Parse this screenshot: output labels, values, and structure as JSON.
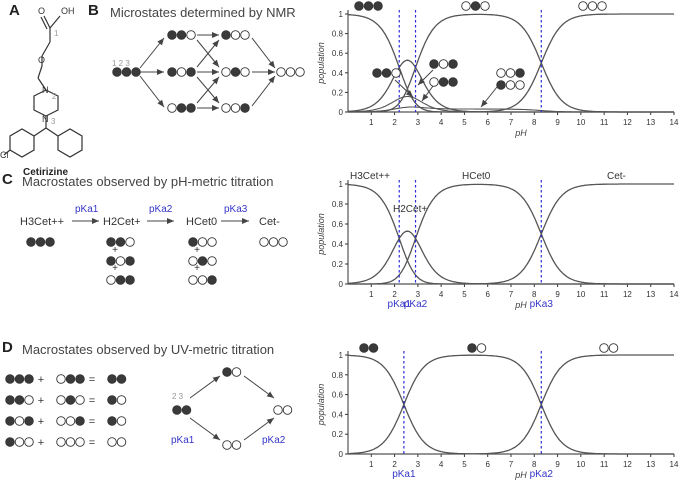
{
  "panels": {
    "A": {
      "label": "A",
      "molecule": "Cetirizine",
      "atoms": {
        "carboxyl": "OH",
        "carbonyl_O": "O",
        "ether_O": "O",
        "chlorine": "Cl",
        "n2": "N",
        "n3": "N",
        "site1": "1",
        "site2": "2",
        "site3": "3"
      }
    },
    "B": {
      "label": "B",
      "title": "Microstates determined by NMR",
      "site_numbers": "1 2 3"
    },
    "C": {
      "label": "C",
      "title": "Macrostates observed by pH-metric titration"
    },
    "D": {
      "label": "D",
      "title": "Macrostates observed by UV-metric titration",
      "site_numbers": "2 3"
    }
  },
  "states": {
    "H3Cet": "H3Cet++",
    "H2Cet": "H2Cet+",
    "HCet": "HCet0",
    "Cet": "Cet-"
  },
  "pka": {
    "k1": "pKa1",
    "k2": "pKa2",
    "k3": "pKa3"
  },
  "equations": [
    "+",
    "="
  ],
  "colors": {
    "curve": "#555555",
    "pka_line": "#2b2bd6",
    "pka_text": "#3535c8",
    "filled_dot": "#3a3a3a"
  },
  "chart_data": [
    {
      "type": "line",
      "panel": "B",
      "xlabel": "pH",
      "ylabel": "population",
      "xlim": [
        0,
        14
      ],
      "ylim": [
        0,
        1
      ],
      "xticks": [
        1,
        2,
        3,
        4,
        5,
        6,
        7,
        8,
        9,
        10,
        11,
        12,
        13,
        14
      ],
      "yticks": [
        0,
        0.2,
        0.4,
        0.6,
        0.8,
        1
      ],
      "pka_values": [
        2.2,
        2.9,
        8.3
      ],
      "state_labels": [
        "111",
        "010",
        "000",
        "110",
        "101",
        "011",
        "001",
        "100"
      ]
    },
    {
      "type": "line",
      "panel": "C",
      "xlabel": "pH",
      "ylabel": "population",
      "xlim": [
        0,
        14
      ],
      "ylim": [
        0,
        1
      ],
      "xticks": [
        1,
        2,
        3,
        4,
        5,
        6,
        7,
        8,
        9,
        10,
        11,
        12,
        13,
        14
      ],
      "yticks": [
        0,
        0.2,
        0.4,
        0.6,
        0.8,
        1
      ],
      "pka_values": [
        2.2,
        2.9,
        8.3
      ],
      "series": [
        {
          "name": "H3Cet++"
        },
        {
          "name": "H2Cet+"
        },
        {
          "name": "HCet0"
        },
        {
          "name": "Cet-"
        }
      ]
    },
    {
      "type": "line",
      "panel": "D",
      "xlabel": "pH",
      "ylabel": "population",
      "xlim": [
        0,
        14
      ],
      "ylim": [
        0,
        1
      ],
      "xticks": [
        1,
        2,
        3,
        4,
        5,
        6,
        7,
        8,
        9,
        10,
        11,
        12,
        13,
        14
      ],
      "yticks": [
        0,
        0.2,
        0.4,
        0.6,
        0.8,
        1
      ],
      "pka_values": [
        2.4,
        8.3
      ],
      "state_labels": [
        "11",
        "10",
        "00"
      ]
    }
  ]
}
